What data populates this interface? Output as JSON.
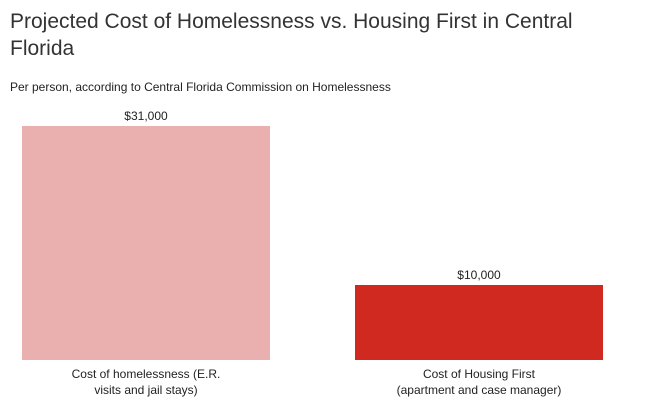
{
  "chart_data": {
    "type": "bar",
    "title": "Projected Cost of Homelessness vs. Housing First in Central Florida",
    "subtitle": "Per person, according to Central Florida Commission on Homelessness",
    "categories": [
      "Cost of homelessness (E.R. visits and jail stays)",
      "Cost of Housing First (apartment and case manager)"
    ],
    "values": [
      31000,
      10000
    ],
    "value_labels": [
      "$31,000",
      "$10,000"
    ],
    "colors": [
      "#eab0b0",
      "#d0291f"
    ]
  }
}
